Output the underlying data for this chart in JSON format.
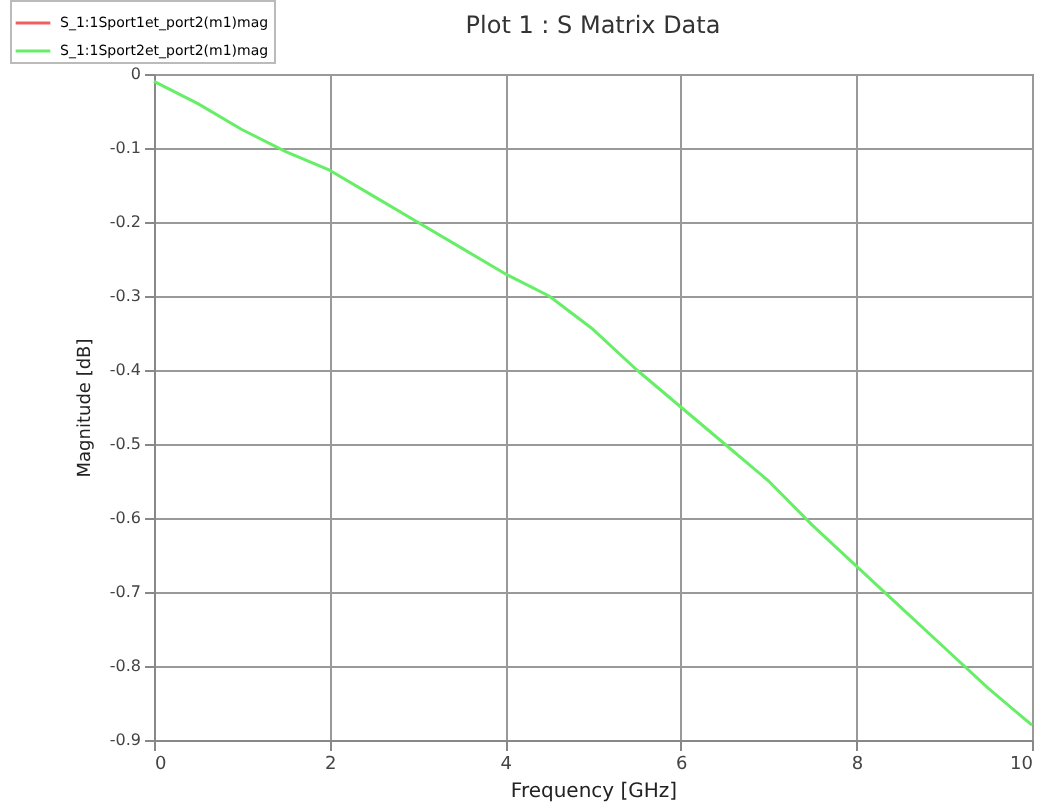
{
  "chart_data": {
    "type": "line",
    "title": "Plot 1 : S Matrix Data",
    "xlabel": "Frequency [GHz]",
    "ylabel": "Magnitude [dB]",
    "x": [
      0,
      0.5,
      1,
      1.5,
      2,
      2.5,
      3,
      3.5,
      4,
      4.5,
      5,
      5.5,
      6,
      6.5,
      7,
      7.5,
      8,
      8.5,
      9,
      9.5,
      10
    ],
    "series": [
      {
        "name": "S_1:1Sport1et_port2(m1)mag",
        "color": "#f06060",
        "values": [
          null,
          null,
          null,
          null,
          null,
          null,
          null,
          null,
          null,
          null,
          null,
          null,
          null,
          null,
          null,
          null,
          null,
          null,
          null,
          null,
          null
        ]
      },
      {
        "name": "S_1:1Sport2et_port2(m1)mag",
        "color": "#66ee66",
        "values": [
          -0.01,
          -0.04,
          -0.075,
          -0.105,
          -0.13,
          -0.165,
          -0.2,
          -0.235,
          -0.27,
          -0.3,
          -0.345,
          -0.4,
          -0.45,
          -0.5,
          -0.55,
          -0.61,
          -0.665,
          -0.72,
          -0.775,
          -0.83,
          -0.88
        ]
      }
    ],
    "xlim": [
      0,
      10
    ],
    "xticks": [
      0,
      2,
      4,
      6,
      8,
      10
    ],
    "ylim": [
      -0.9,
      0
    ],
    "yticks": [
      {
        "value": 0,
        "label": "0"
      },
      -0.1,
      -0.2,
      -0.3,
      -0.4,
      -0.5,
      -0.6,
      -0.7,
      -0.8,
      -0.9
    ],
    "grid": true,
    "legend": "top left",
    "line_style": "solid",
    "marker": "none"
  }
}
